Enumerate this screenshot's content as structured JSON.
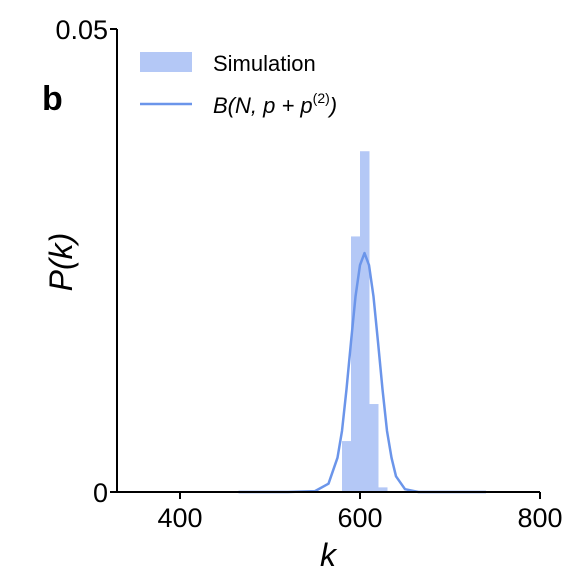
{
  "panel_label": "b",
  "colors": {
    "histogram": "#b4c8f6",
    "fit_line": "#6b95ea",
    "axis": "#000000"
  },
  "legend": {
    "entries": [
      {
        "label": "Simulation",
        "kind": "patch"
      },
      {
        "label": "B(N, p + p(2))",
        "kind": "line"
      }
    ],
    "line_label_parts": {
      "prefix": "B(N, p + p",
      "superscript": "(2)",
      "suffix": ")"
    },
    "position": "top-left"
  },
  "chart_data": {
    "type": "bar",
    "title": "",
    "xlabel": "k",
    "ylabel": "P(k)",
    "xlim": [
      330,
      800
    ],
    "ylim": [
      0,
      0.05
    ],
    "x_ticks": [
      400,
      600,
      800
    ],
    "x_tick_labels": [
      "400",
      "600",
      "800"
    ],
    "y_ticks": [
      0,
      0.05
    ],
    "y_tick_labels": [
      "0",
      "0.05"
    ],
    "grid": false,
    "legend_placement": "top-left",
    "series": [
      {
        "name": "Simulation",
        "kind": "histogram",
        "bins": [
          {
            "x0": 580,
            "x1": 590,
            "value": 0.0055
          },
          {
            "x0": 590,
            "x1": 600,
            "value": 0.0276
          },
          {
            "x0": 600,
            "x1": 610,
            "value": 0.0368
          },
          {
            "x0": 610,
            "x1": 620,
            "value": 0.0095
          },
          {
            "x0": 620,
            "x1": 630,
            "value": 0.0005
          }
        ]
      },
      {
        "name": "B(N, p + p(2))",
        "kind": "line",
        "x": [
          465,
          520,
          550,
          565,
          575,
          580,
          585,
          590,
          595,
          600,
          605,
          610,
          615,
          620,
          625,
          630,
          635,
          640,
          650,
          665,
          690,
          740
        ],
        "y": [
          0,
          0,
          0.0001,
          0.0009,
          0.0037,
          0.0066,
          0.0111,
          0.0162,
          0.0211,
          0.0245,
          0.0258,
          0.0245,
          0.0211,
          0.0162,
          0.0111,
          0.0066,
          0.0037,
          0.0017,
          0.0003,
          0,
          0,
          0
        ]
      }
    ]
  }
}
